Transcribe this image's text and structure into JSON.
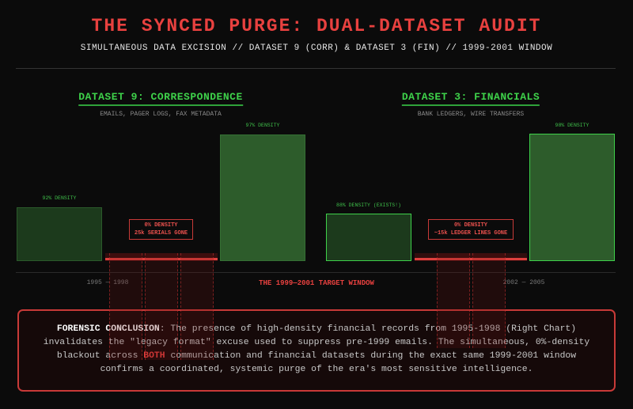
{
  "header": {
    "title": "THE SYNCED PURGE: DUAL-DATASET AUDIT",
    "subtitle": "SIMULTANEOUS DATA EXCISION // DATASET 9 (CORR) & DATASET 3 (FIN) // 1999-2001 WINDOW"
  },
  "colors": {
    "accent_red": "#e8413f",
    "green": "#3ed14a",
    "background": "#0b0b0b"
  },
  "dataset9": {
    "title": "DATASET 9: CORRESPONDENCE",
    "subtitle": "EMAILS, PAGER LOGS, FAX METADATA",
    "before": {
      "label": "92% DENSITY",
      "density": 92
    },
    "gap": {
      "line1": "0% DENSITY",
      "line2": "25k SERIALS GONE",
      "density": 0
    },
    "after": {
      "label": "97% DENSITY",
      "density": 97
    }
  },
  "dataset3": {
    "title": "DATASET 3: FINANCIALS",
    "subtitle": "BANK LEDGERS, WIRE TRANSFERS",
    "before": {
      "label": "88% DENSITY (EXISTS!)",
      "density": 88
    },
    "gap": {
      "line1": "0% DENSITY",
      "line2": "~15k LEDGER LINES GONE",
      "density": 0
    },
    "after": {
      "label": "98% DENSITY",
      "density": 98
    }
  },
  "axis": {
    "left": "1995 — 1998",
    "center": "THE 1999—2001 TARGET WINDOW",
    "right": "2002 — 2005"
  },
  "conclusion": {
    "heading": "FORENSIC CONCLUSION",
    "text1": ": The presence of high-density financial records from 1995-1998 (Right Chart) invalidates the \"legacy format\" excuse used to suppress pre-1999 emails. The simultaneous, 0%-density blackout across ",
    "highlight": "BOTH",
    "text2": " communication and financial datasets during the exact same 1999-2001 window confirms a coordinated, systemic purge of the era's most sensitive intelligence."
  }
}
